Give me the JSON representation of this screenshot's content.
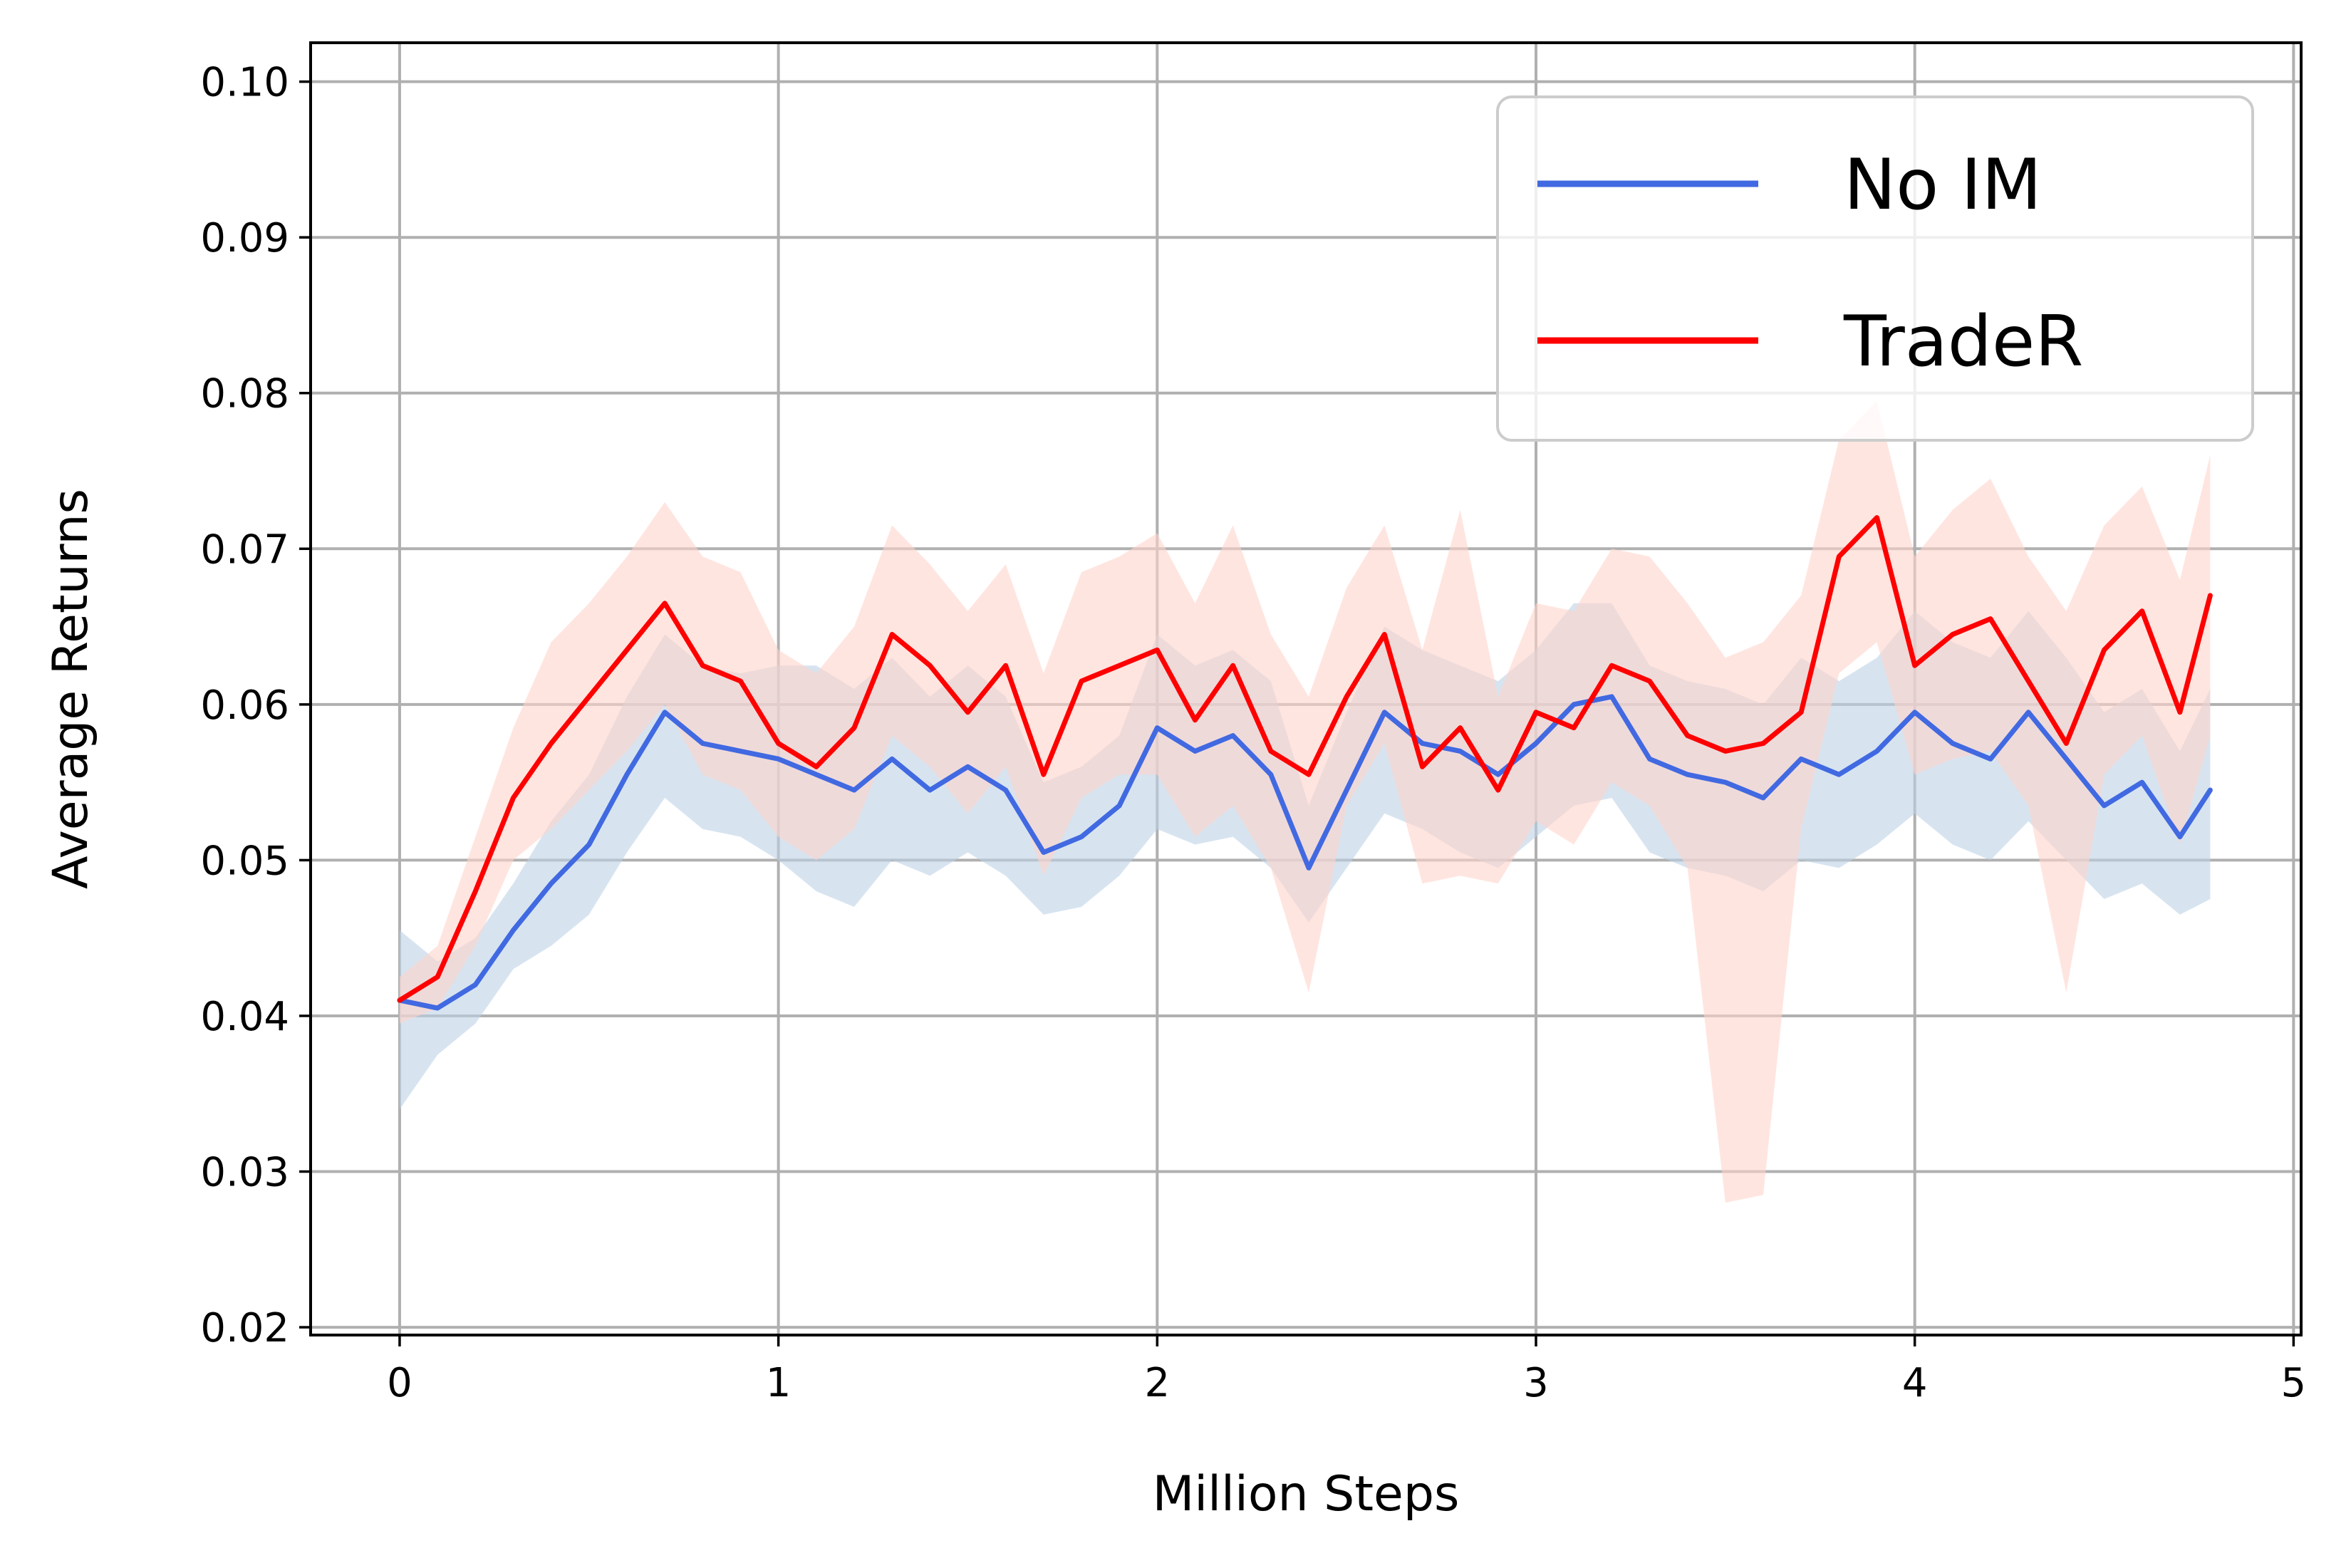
{
  "chart_data": {
    "type": "line",
    "title": "",
    "xlabel": "Million Steps",
    "ylabel": "Average Returns",
    "xlim": [
      -0.235,
      5.02
    ],
    "ylim": [
      0.0195,
      0.1025
    ],
    "xticks": [
      0,
      1,
      2,
      3,
      4,
      5
    ],
    "xtick_labels": [
      "0",
      "1",
      "2",
      "3",
      "4",
      "5"
    ],
    "yticks": [
      0.02,
      0.03,
      0.04,
      0.05,
      0.06,
      0.07,
      0.08,
      0.09,
      0.1
    ],
    "ytick_labels": [
      "0.02",
      "0.03",
      "0.04",
      "0.05",
      "0.06",
      "0.07",
      "0.08",
      "0.09",
      "0.10"
    ],
    "grid": true,
    "legend_position": "top-right",
    "series": [
      {
        "name": "No IM",
        "color": "#4169e1",
        "band_color": "#bdd2e6",
        "x": [
          0,
          0.1,
          0.2,
          0.3,
          0.4,
          0.5,
          0.6,
          0.7,
          0.8,
          0.9,
          1.0,
          1.1,
          1.2,
          1.3,
          1.4,
          1.5,
          1.6,
          1.7,
          1.8,
          1.9,
          2.0,
          2.1,
          2.2,
          2.3,
          2.4,
          2.5,
          2.6,
          2.7,
          2.8,
          2.9,
          3.0,
          3.1,
          3.2,
          3.3,
          3.4,
          3.5,
          3.6,
          3.7,
          3.8,
          3.9,
          4.0,
          4.1,
          4.2,
          4.3,
          4.4,
          4.5,
          4.6,
          4.7,
          4.78
        ],
        "y": [
          0.041,
          0.0405,
          0.042,
          0.0455,
          0.0485,
          0.051,
          0.0555,
          0.0595,
          0.0575,
          0.057,
          0.0565,
          0.0555,
          0.0545,
          0.0565,
          0.0545,
          0.056,
          0.0545,
          0.0505,
          0.0515,
          0.0535,
          0.0585,
          0.057,
          0.058,
          0.0555,
          0.0495,
          0.0545,
          0.0595,
          0.0575,
          0.057,
          0.0555,
          0.0575,
          0.06,
          0.0605,
          0.0565,
          0.0555,
          0.055,
          0.054,
          0.0565,
          0.0555,
          0.057,
          0.0595,
          0.0575,
          0.0565,
          0.0595,
          0.0565,
          0.0535,
          0.055,
          0.0515,
          0.0545
        ],
        "lower": [
          0.034,
          0.0375,
          0.0395,
          0.043,
          0.0445,
          0.0465,
          0.0505,
          0.054,
          0.052,
          0.0515,
          0.05,
          0.048,
          0.047,
          0.05,
          0.049,
          0.0505,
          0.049,
          0.0465,
          0.047,
          0.049,
          0.052,
          0.051,
          0.0515,
          0.0495,
          0.046,
          0.0495,
          0.053,
          0.052,
          0.0505,
          0.0495,
          0.0515,
          0.0535,
          0.054,
          0.0505,
          0.0495,
          0.049,
          0.048,
          0.05,
          0.0495,
          0.051,
          0.053,
          0.051,
          0.05,
          0.0525,
          0.05,
          0.0475,
          0.0485,
          0.0465,
          0.0475
        ],
        "upper": [
          0.0455,
          0.0435,
          0.045,
          0.0485,
          0.0525,
          0.0555,
          0.0605,
          0.0645,
          0.0625,
          0.062,
          0.0625,
          0.0625,
          0.061,
          0.063,
          0.0605,
          0.0625,
          0.0605,
          0.055,
          0.056,
          0.058,
          0.0645,
          0.0625,
          0.0635,
          0.0615,
          0.0535,
          0.0595,
          0.065,
          0.0635,
          0.0625,
          0.0615,
          0.0635,
          0.0665,
          0.0665,
          0.0625,
          0.0615,
          0.061,
          0.06,
          0.063,
          0.0615,
          0.063,
          0.066,
          0.064,
          0.063,
          0.066,
          0.063,
          0.0595,
          0.061,
          0.057,
          0.061
        ]
      },
      {
        "name": "TradeR",
        "color": "#ff0000",
        "band_color": "#ffd4cc",
        "x": [
          0,
          0.1,
          0.2,
          0.3,
          0.4,
          0.5,
          0.6,
          0.7,
          0.8,
          0.9,
          1.0,
          1.1,
          1.2,
          1.3,
          1.4,
          1.5,
          1.6,
          1.7,
          1.8,
          1.9,
          2.0,
          2.1,
          2.2,
          2.3,
          2.4,
          2.5,
          2.6,
          2.7,
          2.8,
          2.9,
          3.0,
          3.1,
          3.2,
          3.3,
          3.4,
          3.5,
          3.6,
          3.7,
          3.8,
          3.9,
          4.0,
          4.1,
          4.2,
          4.3,
          4.4,
          4.5,
          4.6,
          4.7,
          4.78
        ],
        "y": [
          0.041,
          0.0425,
          0.048,
          0.054,
          0.0575,
          0.0605,
          0.0635,
          0.0665,
          0.0625,
          0.0615,
          0.0575,
          0.056,
          0.0585,
          0.0645,
          0.0625,
          0.0595,
          0.0625,
          0.0555,
          0.0615,
          0.0625,
          0.0635,
          0.059,
          0.0625,
          0.057,
          0.0555,
          0.0605,
          0.0645,
          0.056,
          0.0585,
          0.0545,
          0.0595,
          0.0585,
          0.0625,
          0.0615,
          0.058,
          0.057,
          0.0575,
          0.0595,
          0.0695,
          0.072,
          0.0625,
          0.0645,
          0.0655,
          0.0615,
          0.0575,
          0.0635,
          0.066,
          0.0595,
          0.067
        ],
        "lower": [
          0.0395,
          0.0405,
          0.0445,
          0.05,
          0.052,
          0.0545,
          0.057,
          0.06,
          0.0555,
          0.0545,
          0.0515,
          0.05,
          0.052,
          0.058,
          0.056,
          0.053,
          0.056,
          0.049,
          0.054,
          0.0555,
          0.0555,
          0.0515,
          0.0535,
          0.0495,
          0.0415,
          0.0535,
          0.0575,
          0.0485,
          0.049,
          0.0485,
          0.0525,
          0.051,
          0.055,
          0.0535,
          0.0495,
          0.028,
          0.0285,
          0.052,
          0.062,
          0.064,
          0.0555,
          0.0565,
          0.057,
          0.0535,
          0.0415,
          0.0555,
          0.058,
          0.051,
          0.058
        ],
        "upper": [
          0.0425,
          0.0445,
          0.0515,
          0.0585,
          0.064,
          0.0665,
          0.0695,
          0.073,
          0.0695,
          0.0685,
          0.0635,
          0.062,
          0.065,
          0.0715,
          0.069,
          0.066,
          0.069,
          0.062,
          0.0685,
          0.0695,
          0.071,
          0.0665,
          0.0715,
          0.0645,
          0.0605,
          0.0675,
          0.0715,
          0.0635,
          0.0725,
          0.0605,
          0.0665,
          0.066,
          0.07,
          0.0695,
          0.0665,
          0.063,
          0.064,
          0.067,
          0.077,
          0.0795,
          0.0695,
          0.0725,
          0.0745,
          0.0695,
          0.066,
          0.0715,
          0.074,
          0.068,
          0.076
        ]
      }
    ]
  }
}
